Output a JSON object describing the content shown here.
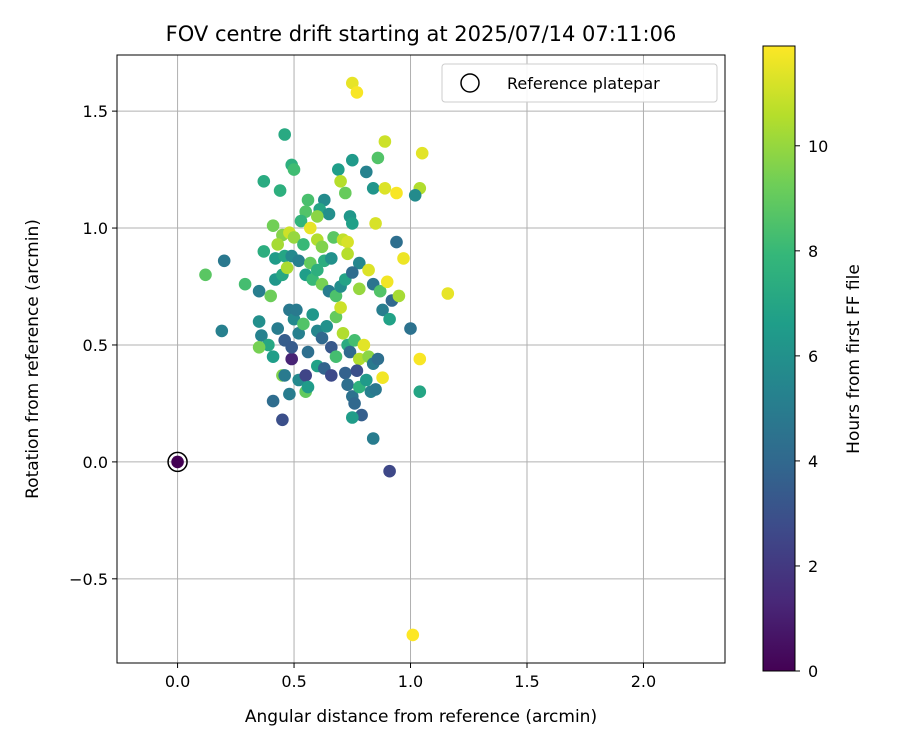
{
  "chart_data": {
    "type": "scatter",
    "title": "FOV centre drift starting at 2025/07/14 07:11:06",
    "xlabel": "Angular distance from reference (arcmin)",
    "ylabel": "Rotation from reference (arcmin)",
    "colorbar_label": "Hours from first FF file",
    "xlim": [
      -0.26,
      2.35
    ],
    "ylim": [
      -0.86,
      1.74
    ],
    "clim": [
      0,
      11.9
    ],
    "xticks": [
      0.0,
      0.5,
      1.0,
      1.5,
      2.0
    ],
    "xtick_labels": [
      "0.0",
      "0.5",
      "1.0",
      "1.5",
      "2.0"
    ],
    "yticks": [
      -0.5,
      0.0,
      0.5,
      1.0,
      1.5
    ],
    "ytick_labels": [
      "−0.5",
      "0.0",
      "0.5",
      "1.0",
      "1.5"
    ],
    "cticks": [
      0,
      2,
      4,
      6,
      8,
      10
    ],
    "ctick_labels": [
      "0",
      "2",
      "4",
      "6",
      "8",
      "10"
    ],
    "colormap": "viridis",
    "grid": true,
    "legend": {
      "label": "Reference platepar",
      "placement": "top-right"
    },
    "reference_point": {
      "x": 0.0,
      "y": 0.0,
      "hours": 0.0
    },
    "points": [
      [
        0.46,
        1.4,
        7.2
      ],
      [
        0.49,
        1.27,
        7.5
      ],
      [
        0.5,
        1.25,
        8.2
      ],
      [
        0.75,
        1.29,
        6.4
      ],
      [
        0.69,
        1.25,
        6.6
      ],
      [
        0.37,
        1.2,
        7.3
      ],
      [
        0.44,
        1.16,
        7.5
      ],
      [
        0.75,
        1.62,
        11.5
      ],
      [
        0.77,
        1.58,
        11.8
      ],
      [
        0.89,
        1.37,
        11.0
      ],
      [
        0.86,
        1.3,
        8.6
      ],
      [
        1.05,
        1.32,
        11.4
      ],
      [
        0.81,
        1.24,
        5.3
      ],
      [
        0.7,
        1.2,
        10.6
      ],
      [
        0.84,
        1.17,
        6.2
      ],
      [
        0.72,
        1.15,
        9.1
      ],
      [
        0.89,
        1.17,
        11.3
      ],
      [
        0.94,
        1.15,
        11.8
      ],
      [
        1.04,
        1.17,
        10.5
      ],
      [
        1.02,
        1.14,
        5.7
      ],
      [
        0.63,
        1.12,
        5.7
      ],
      [
        0.56,
        1.12,
        8.4
      ],
      [
        0.61,
        1.08,
        7.0
      ],
      [
        0.55,
        1.07,
        8.6
      ],
      [
        0.65,
        1.06,
        5.9
      ],
      [
        0.53,
        1.03,
        7.8
      ],
      [
        0.6,
        1.05,
        9.8
      ],
      [
        0.74,
        1.05,
        6.3
      ],
      [
        0.75,
        1.02,
        6.7
      ],
      [
        0.85,
        1.02,
        11.2
      ],
      [
        0.41,
        1.01,
        9.3
      ],
      [
        0.45,
        0.97,
        9.7
      ],
      [
        0.43,
        0.93,
        10.3
      ],
      [
        0.48,
        0.98,
        11.0
      ],
      [
        0.5,
        0.96,
        10.0
      ],
      [
        0.57,
        1.0,
        11.5
      ],
      [
        0.6,
        0.95,
        10.5
      ],
      [
        0.62,
        0.92,
        9.6
      ],
      [
        0.54,
        0.93,
        8.0
      ],
      [
        0.67,
        0.96,
        8.8
      ],
      [
        0.71,
        0.95,
        10.8
      ],
      [
        0.73,
        0.94,
        11.2
      ],
      [
        0.94,
        0.94,
        4.3
      ],
      [
        0.37,
        0.9,
        7.4
      ],
      [
        0.42,
        0.87,
        6.5
      ],
      [
        0.46,
        0.88,
        7.0
      ],
      [
        0.49,
        0.88,
        5.6
      ],
      [
        0.52,
        0.86,
        5.2
      ],
      [
        0.57,
        0.85,
        9.0
      ],
      [
        0.63,
        0.86,
        7.4
      ],
      [
        0.66,
        0.87,
        6.0
      ],
      [
        0.73,
        0.89,
        10.6
      ],
      [
        0.78,
        0.85,
        5.5
      ],
      [
        0.97,
        0.87,
        11.6
      ],
      [
        0.12,
        0.8,
        8.8
      ],
      [
        0.2,
        0.86,
        4.8
      ],
      [
        0.29,
        0.76,
        8.3
      ],
      [
        0.35,
        0.73,
        5.1
      ],
      [
        0.4,
        0.71,
        9.2
      ],
      [
        0.42,
        0.78,
        6.3
      ],
      [
        0.45,
        0.8,
        7.1
      ],
      [
        0.47,
        0.83,
        10.4
      ],
      [
        0.55,
        0.8,
        6.6
      ],
      [
        0.58,
        0.78,
        8.0
      ],
      [
        0.6,
        0.82,
        7.5
      ],
      [
        0.62,
        0.76,
        9.4
      ],
      [
        0.65,
        0.73,
        5.0
      ],
      [
        0.68,
        0.71,
        8.5
      ],
      [
        0.7,
        0.75,
        5.8
      ],
      [
        0.72,
        0.78,
        6.9
      ],
      [
        0.75,
        0.81,
        4.2
      ],
      [
        0.78,
        0.74,
        10.0
      ],
      [
        0.82,
        0.82,
        11.3
      ],
      [
        0.84,
        0.76,
        4.6
      ],
      [
        0.87,
        0.73,
        8.6
      ],
      [
        0.9,
        0.77,
        11.7
      ],
      [
        0.92,
        0.69,
        4.0
      ],
      [
        0.95,
        0.71,
        10.3
      ],
      [
        1.16,
        0.72,
        11.5
      ],
      [
        0.19,
        0.56,
        5.2
      ],
      [
        0.35,
        0.6,
        5.9
      ],
      [
        0.36,
        0.54,
        5.3
      ],
      [
        0.39,
        0.5,
        7.1
      ],
      [
        0.41,
        0.45,
        6.6
      ],
      [
        0.43,
        0.57,
        5.0
      ],
      [
        0.46,
        0.52,
        3.5
      ],
      [
        0.48,
        0.65,
        4.8
      ],
      [
        0.5,
        0.61,
        5.6
      ],
      [
        0.51,
        0.65,
        4.9
      ],
      [
        0.52,
        0.55,
        5.2
      ],
      [
        0.54,
        0.59,
        8.6
      ],
      [
        0.56,
        0.47,
        4.3
      ],
      [
        0.58,
        0.63,
        6.3
      ],
      [
        0.6,
        0.56,
        5.5
      ],
      [
        0.62,
        0.53,
        4.0
      ],
      [
        0.64,
        0.58,
        6.0
      ],
      [
        0.66,
        0.49,
        3.3
      ],
      [
        0.68,
        0.62,
        9.0
      ],
      [
        0.7,
        0.66,
        11.0
      ],
      [
        0.71,
        0.55,
        10.5
      ],
      [
        0.73,
        0.5,
        7.3
      ],
      [
        0.74,
        0.47,
        4.1
      ],
      [
        0.76,
        0.52,
        8.3
      ],
      [
        0.78,
        0.44,
        10.5
      ],
      [
        0.8,
        0.5,
        11.4
      ],
      [
        0.82,
        0.45,
        9.8
      ],
      [
        0.84,
        0.42,
        4.9
      ],
      [
        0.86,
        0.44,
        4.3
      ],
      [
        0.88,
        0.65,
        5.1
      ],
      [
        0.91,
        0.61,
        6.8
      ],
      [
        1.0,
        0.57,
        4.5
      ],
      [
        1.04,
        0.44,
        11.8
      ],
      [
        0.35,
        0.49,
        9.4
      ],
      [
        0.45,
        0.37,
        9.6
      ],
      [
        0.46,
        0.37,
        4.9
      ],
      [
        0.49,
        0.44,
        1.2
      ],
      [
        0.49,
        0.49,
        3.4
      ],
      [
        0.52,
        0.35,
        5.6
      ],
      [
        0.55,
        0.37,
        2.5
      ],
      [
        0.55,
        0.3,
        9.0
      ],
      [
        0.56,
        0.32,
        6.5
      ],
      [
        0.6,
        0.41,
        6.8
      ],
      [
        0.63,
        0.4,
        3.8
      ],
      [
        0.66,
        0.37,
        2.7
      ],
      [
        0.68,
        0.45,
        8.3
      ],
      [
        0.72,
        0.38,
        3.7
      ],
      [
        0.73,
        0.33,
        4.3
      ],
      [
        0.75,
        0.28,
        4.5
      ],
      [
        0.76,
        0.25,
        4.0
      ],
      [
        0.78,
        0.32,
        7.6
      ],
      [
        0.77,
        0.39,
        2.9
      ],
      [
        0.79,
        0.2,
        3.6
      ],
      [
        0.81,
        0.35,
        6.4
      ],
      [
        0.83,
        0.3,
        5.2
      ],
      [
        0.85,
        0.31,
        4.8
      ],
      [
        0.88,
        0.36,
        11.7
      ],
      [
        1.04,
        0.3,
        7.0
      ],
      [
        0.41,
        0.26,
        4.2
      ],
      [
        0.45,
        0.18,
        2.9
      ],
      [
        0.48,
        0.29,
        5.0
      ],
      [
        0.75,
        0.19,
        6.5
      ],
      [
        0.84,
        0.1,
        5.0
      ],
      [
        0.91,
        -0.04,
        2.6
      ],
      [
        1.01,
        -0.74,
        11.9
      ]
    ]
  }
}
